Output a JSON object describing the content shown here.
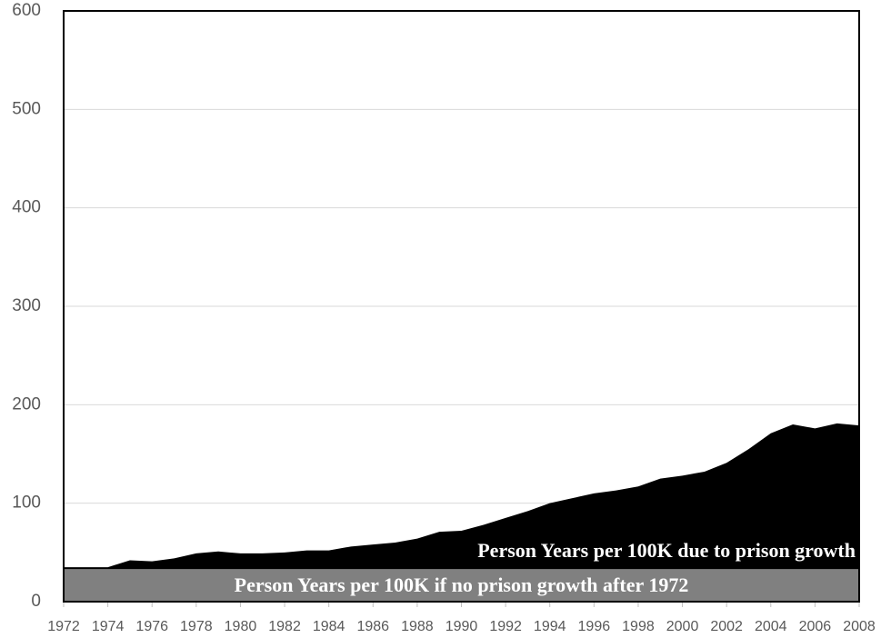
{
  "chart_data": {
    "type": "stacked_area",
    "x": [
      1972,
      1973,
      1974,
      1975,
      1976,
      1977,
      1978,
      1979,
      1980,
      1981,
      1982,
      1983,
      1984,
      1985,
      1986,
      1987,
      1988,
      1989,
      1990,
      1991,
      1992,
      1993,
      1994,
      1995,
      1996,
      1997,
      1998,
      1999,
      2000,
      2001,
      2002,
      2003,
      2004,
      2005,
      2006,
      2007,
      2008
    ],
    "series": [
      {
        "name": "Person Years per 100K if no prison growth after 1972",
        "color": "#808080",
        "values": [
          33,
          33,
          33,
          33,
          33,
          33,
          33,
          33,
          33,
          33,
          33,
          33,
          33,
          33,
          33,
          33,
          33,
          33,
          33,
          33,
          33,
          33,
          33,
          33,
          33,
          33,
          33,
          33,
          33,
          33,
          33,
          33,
          33,
          33,
          33,
          33,
          33
        ]
      },
      {
        "name": "Person Years per 100K due to prison growth",
        "color": "#000000",
        "values": [
          2,
          2,
          2,
          9,
          8,
          11,
          16,
          18,
          16,
          16,
          17,
          19,
          19,
          23,
          25,
          27,
          31,
          38,
          39,
          45,
          52,
          59,
          67,
          72,
          77,
          80,
          84,
          92,
          95,
          99,
          108,
          122,
          138,
          147,
          143,
          148,
          146
        ]
      }
    ],
    "xlim": [
      1972,
      2008
    ],
    "xticks": [
      1972,
      1974,
      1976,
      1978,
      1980,
      1982,
      1984,
      1986,
      1988,
      1990,
      1992,
      1994,
      1996,
      1998,
      2000,
      2002,
      2004,
      2006,
      2008
    ],
    "ylim": [
      0,
      600
    ],
    "yticks": [
      0,
      100,
      200,
      300,
      400,
      500,
      600
    ],
    "grid": true
  }
}
